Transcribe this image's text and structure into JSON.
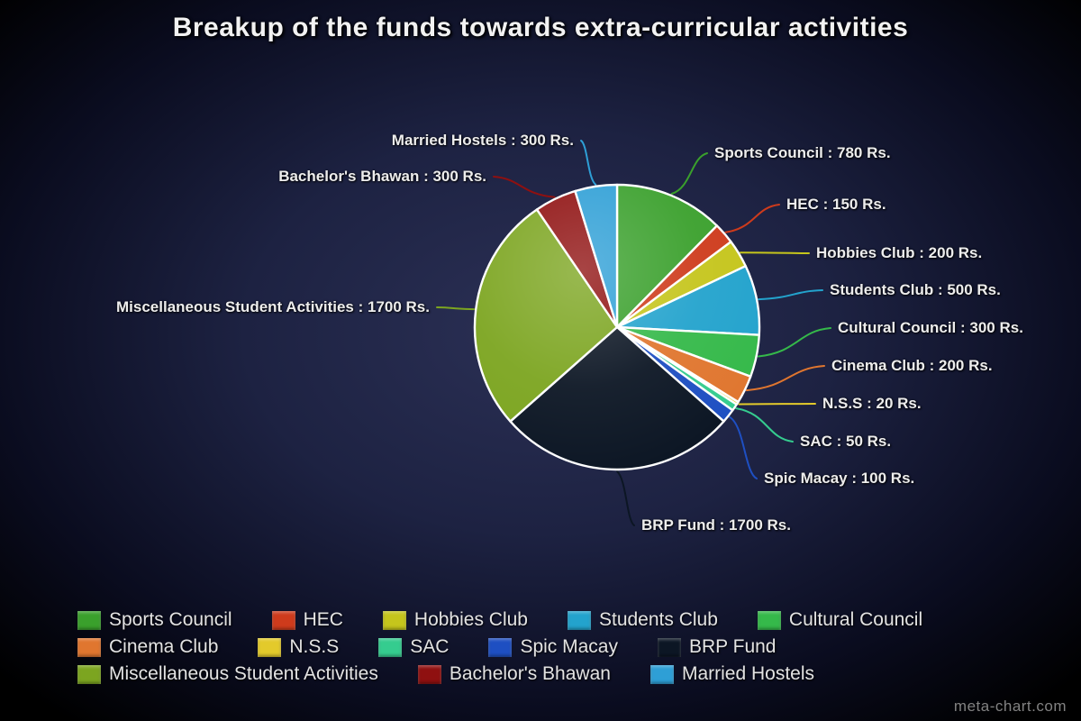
{
  "title": "Breakup of the funds towards extra-curricular activities",
  "watermark": "meta-chart.com",
  "chart_data": {
    "type": "pie",
    "title": "Breakup of the funds towards extra-curricular activities",
    "unit": "Rs.",
    "total": 6300,
    "legend_position": "bottom",
    "start_angle_deg": -90,
    "direction": "clockwise",
    "slices": [
      {
        "label": "Sports Council",
        "value": 780,
        "color": "#3aa02c",
        "callout": "Sports Council : 780 Rs."
      },
      {
        "label": "HEC",
        "value": 150,
        "color": "#ce3b1c",
        "callout": "HEC : 150 Rs."
      },
      {
        "label": "Hobbies Club",
        "value": 200,
        "color": "#c5c51c",
        "callout": "Hobbies Club : 200 Rs."
      },
      {
        "label": "Students Club",
        "value": 500,
        "color": "#23a3cd",
        "callout": "Students Club : 500 Rs."
      },
      {
        "label": "Cultural Council",
        "value": 300,
        "color": "#35b94a",
        "callout": "Cultural Council : 300 Rs."
      },
      {
        "label": "Cinema Club",
        "value": 200,
        "color": "#e0762f",
        "callout": "Cinema Club : 200 Rs."
      },
      {
        "label": "N.S.S",
        "value": 20,
        "color": "#e3ca2b",
        "callout": "N.S.S : 20 Rs."
      },
      {
        "label": "SAC",
        "value": 50,
        "color": "#35cc8f",
        "callout": "SAC : 50 Rs."
      },
      {
        "label": "Spic Macay",
        "value": 100,
        "color": "#1e4fc2",
        "callout": "Spic Macay : 100 Rs."
      },
      {
        "label": "BRP Fund",
        "value": 1700,
        "color": "#0c1624",
        "callout": "BRP Fund : 1700 Rs."
      },
      {
        "label": "Miscellaneous Student Activities",
        "value": 1700,
        "color": "#7ca520",
        "callout": "Miscellaneous Student Activities : 1700 Rs."
      },
      {
        "label": "Bachelor's Bhawan",
        "value": 300,
        "color": "#8f1010",
        "callout": "Bachelor's Bhawan : 300 Rs."
      },
      {
        "label": "Married Hostels",
        "value": 300,
        "color": "#2e9fd6",
        "callout": "Married Hostels : 300 Rs."
      }
    ]
  }
}
